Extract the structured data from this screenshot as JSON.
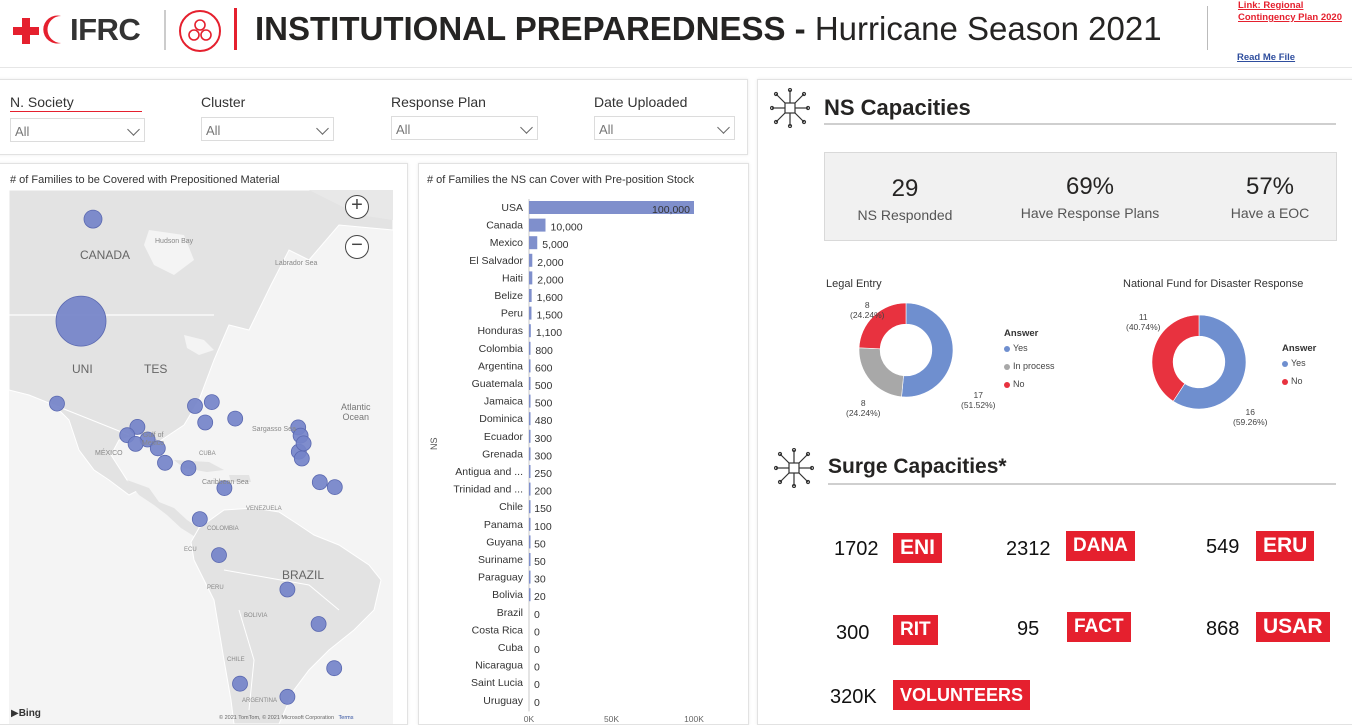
{
  "header": {
    "logo_text": "IFRC",
    "title_bold": "INSTITUTIONAL PREPAREDNESS -",
    "title_rest": "Hurricane Season 2021",
    "link_line1": "Link: Regional",
    "link_line2": "Contingency Plan 2020",
    "readme": "Read Me File"
  },
  "filters": [
    {
      "label": "N. Society",
      "value": "All"
    },
    {
      "label": "Cluster",
      "value": "All"
    },
    {
      "label": "Response Plan",
      "value": "All"
    },
    {
      "label": "Date Uploaded",
      "value": "All"
    }
  ],
  "map": {
    "title": "# of Families to be Covered with Prepositioned Material",
    "labels": {
      "canada": "CANADA",
      "united_states_left": "UNI",
      "united_states_right": "TES",
      "brazil": "BRAZIL",
      "hudson_bay": "Hudson Bay",
      "labrador_sea": "Labrador Sea",
      "atlantic": "Atlantic",
      "ocean": "Ocean",
      "sargasso": "Sargasso Sea",
      "gulf_of_mexico": "Gulf of",
      "gulf_of_mexico_2": "Mexico",
      "mexico": "MÉXICO",
      "cuba": "CUBA",
      "caribbean": "Caribbean Sea",
      "venezuela": "VENEZUELA",
      "colombia": "COLOMBIA",
      "ecuador": "ECU",
      "peru": "PERU",
      "chile": "CHILE",
      "bolivia": "BOLIVIA",
      "argentina": "ARGENTINA"
    },
    "attribution": "© 2021 TomTom, © 2021 Microsoft Corporation",
    "terms": "Terms",
    "bing": "Bing",
    "zoom_in": "+",
    "zoom_out": "−",
    "bubbles": [
      {
        "lat": 60,
        "lon": -96,
        "families": 10000
      },
      {
        "lat": 39,
        "lon": -98,
        "families": 100000
      },
      {
        "lat": 22,
        "lon": -102,
        "families": 5000
      },
      {
        "lat": 21.5,
        "lon": -79,
        "families": 0
      },
      {
        "lat": 22.3,
        "lon": -76.2,
        "families": 0
      },
      {
        "lat": 17.2,
        "lon": -88.6,
        "families": 1600
      },
      {
        "lat": 15.5,
        "lon": -90.3,
        "families": 500
      },
      {
        "lat": 14.6,
        "lon": -86.9,
        "families": 1100
      },
      {
        "lat": 13.7,
        "lon": -88.9,
        "families": 2000
      },
      {
        "lat": 12.8,
        "lon": -85.2,
        "families": 0
      },
      {
        "lat": 9.8,
        "lon": -84,
        "families": 0
      },
      {
        "lat": 8.7,
        "lon": -80.1,
        "families": 100
      },
      {
        "lat": 18.9,
        "lon": -72.3,
        "families": 2000
      },
      {
        "lat": 18.1,
        "lon": -77.3,
        "families": 500
      },
      {
        "lat": 17.1,
        "lon": -61.8,
        "families": 250
      },
      {
        "lat": 15.4,
        "lon": -61.4,
        "families": 480
      },
      {
        "lat": 12.1,
        "lon": -61.7,
        "families": 300
      },
      {
        "lat": 13.8,
        "lon": -60.9,
        "families": 0
      },
      {
        "lat": 10.7,
        "lon": -61.2,
        "families": 200
      },
      {
        "lat": 5.8,
        "lon": -58.2,
        "families": 50
      },
      {
        "lat": 4.8,
        "lon": -55.7,
        "families": 50
      },
      {
        "lat": 4.6,
        "lon": -74.1,
        "families": 800
      },
      {
        "lat": -1.8,
        "lon": -78.2,
        "families": 300
      },
      {
        "lat": -9.2,
        "lon": -75.0,
        "families": 1500
      },
      {
        "lat": -16.3,
        "lon": -63.6,
        "families": 20
      },
      {
        "lat": -23.4,
        "lon": -58.4,
        "families": 30
      },
      {
        "lat": -32.5,
        "lon": -55.8,
        "families": 0
      },
      {
        "lat": -35.7,
        "lon": -71.5,
        "families": 150
      },
      {
        "lat": -38.4,
        "lon": -63.6,
        "families": 600
      }
    ]
  },
  "bar_chart": {
    "title": "# of Families the NS can Cover with Pre-position Stock",
    "y_axis_label": "NS",
    "x_ticks": [
      "0K",
      "50K",
      "100K"
    ],
    "xlim": [
      0,
      100000
    ]
  },
  "chart_data": {
    "type": "bar",
    "orientation": "horizontal",
    "title": "# of Families the NS can Cover with Pre-position Stock",
    "ylabel": "NS",
    "xlabel": "",
    "xlim": [
      0,
      100000
    ],
    "categories": [
      "USA",
      "Canada",
      "Mexico",
      "El Salvador",
      "Haiti",
      "Belize",
      "Peru",
      "Honduras",
      "Colombia",
      "Argentina",
      "Guatemala",
      "Jamaica",
      "Dominica",
      "Ecuador",
      "Grenada",
      "Antigua and ...",
      "Trinidad and ...",
      "Chile",
      "Panama",
      "Guyana",
      "Suriname",
      "Paraguay",
      "Bolivia",
      "Brazil",
      "Costa Rica",
      "Cuba",
      "Nicaragua",
      "Saint Lucia",
      "Uruguay"
    ],
    "values": [
      100000,
      10000,
      5000,
      2000,
      2000,
      1600,
      1500,
      1100,
      800,
      600,
      500,
      500,
      480,
      300,
      300,
      250,
      200,
      150,
      100,
      50,
      50,
      30,
      20,
      0,
      0,
      0,
      0,
      0,
      0
    ],
    "value_labels": [
      "100,000",
      "10,000",
      "5,000",
      "2,000",
      "2,000",
      "1,600",
      "1,500",
      "1,100",
      "800",
      "600",
      "500",
      "500",
      "480",
      "300",
      "300",
      "250",
      "200",
      "150",
      "100",
      "50",
      "50",
      "30",
      "20",
      "0",
      "0",
      "0",
      "0",
      "0",
      "0"
    ],
    "bar_color": "#7f8fcc"
  },
  "ns_capacities": {
    "title": "NS Capacities",
    "kpis": [
      {
        "value": "29",
        "label": "NS Responded"
      },
      {
        "value": "69%",
        "label": "Have Response Plans"
      },
      {
        "value": "57%",
        "label": "Have a EOC"
      }
    ],
    "legal_entry": {
      "title": "Legal Entry",
      "legend_title": "Answer",
      "slices": [
        {
          "name": "Yes",
          "count": 17,
          "pct": "(51.52%)",
          "color": "#6f8fcf"
        },
        {
          "name": "In process",
          "count": 8,
          "pct": "(24.24%)",
          "color": "#a8a8a8"
        },
        {
          "name": "No",
          "count": 8,
          "pct": "(24.24%)",
          "color": "#e8323f"
        }
      ]
    },
    "national_fund": {
      "title": "National Fund for Disaster Response",
      "legend_title": "Answer",
      "slices": [
        {
          "name": "Yes",
          "count": 16,
          "pct": "(59.26%)",
          "color": "#6f8fcf"
        },
        {
          "name": "No",
          "count": 11,
          "pct": "(40.74%)",
          "color": "#e8323f"
        }
      ]
    }
  },
  "surge": {
    "title": "Surge Capacities*",
    "items": [
      {
        "value": "1702",
        "label": "ENI"
      },
      {
        "value": "2312",
        "label": "DANA"
      },
      {
        "value": "549",
        "label": "ERU"
      },
      {
        "value": "300",
        "label": "RIT"
      },
      {
        "value": "95",
        "label": "FACT"
      },
      {
        "value": "868",
        "label": "USAR"
      },
      {
        "value": "320K",
        "label": "VOLUNTEERS"
      }
    ]
  },
  "colors": {
    "brand_red": "#e5202e",
    "bar_blue": "#7f8fcc",
    "bubble_blue": "#7483c9"
  }
}
